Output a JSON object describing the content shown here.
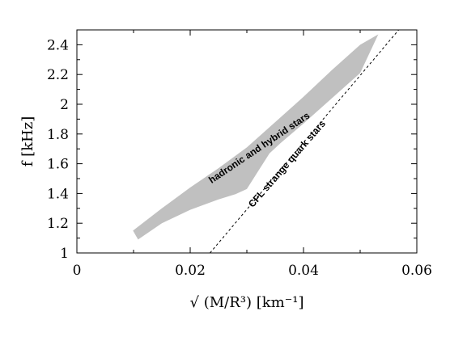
{
  "chart_data": {
    "type": "area",
    "xlabel": "√ (M/R³) [km⁻¹]",
    "ylabel": "f [kHz]",
    "xlim": [
      0,
      0.06
    ],
    "ylim": [
      1,
      2.5
    ],
    "x_ticks": [
      0,
      0.02,
      0.04,
      0.06
    ],
    "x_tick_labels": [
      "0",
      "0.02",
      "0.04",
      "0.06"
    ],
    "y_ticks": [
      1,
      1.2,
      1.4,
      1.6,
      1.8,
      2,
      2.2,
      2.4
    ],
    "y_tick_labels": [
      "1",
      "1.2",
      "1.4",
      "1.6",
      "1.8",
      "2",
      "2.2",
      "2.4"
    ],
    "grid": false,
    "band": {
      "label": "hadronic and hybrid stars",
      "fill_color": "#c0c0c0",
      "upper": [
        [
          0.0099,
          1.15
        ],
        [
          0.015,
          1.3
        ],
        [
          0.02,
          1.44
        ],
        [
          0.025,
          1.57
        ],
        [
          0.03,
          1.71
        ],
        [
          0.035,
          1.88
        ],
        [
          0.04,
          2.05
        ],
        [
          0.045,
          2.23
        ],
        [
          0.05,
          2.4
        ],
        [
          0.0532,
          2.47
        ]
      ],
      "lower": [
        [
          0.0108,
          1.09
        ],
        [
          0.015,
          1.2
        ],
        [
          0.02,
          1.29
        ],
        [
          0.025,
          1.36
        ],
        [
          0.028,
          1.395
        ],
        [
          0.03,
          1.43
        ],
        [
          0.032,
          1.55
        ],
        [
          0.034,
          1.67
        ],
        [
          0.036,
          1.74
        ],
        [
          0.04,
          1.87
        ],
        [
          0.045,
          2.04
        ],
        [
          0.05,
          2.21
        ],
        [
          0.0532,
          2.47
        ]
      ]
    },
    "line": {
      "label": "CFL strange quark stars",
      "style": "dashed",
      "color": "#000000",
      "points": [
        [
          0.0235,
          1.0
        ],
        [
          0.0568,
          2.5
        ]
      ]
    }
  }
}
